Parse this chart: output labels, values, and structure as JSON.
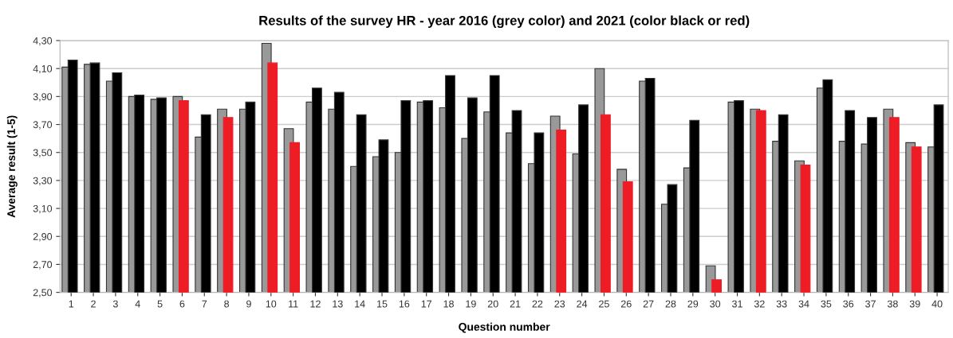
{
  "chart_data": {
    "type": "bar",
    "title": "Results of the survey HR - year 2016 (grey color) and 2021 (color black or red)",
    "xlabel": "Question number",
    "ylabel": "Average result (1-5)",
    "categories": [
      "1",
      "2",
      "3",
      "4",
      "5",
      "6",
      "7",
      "8",
      "9",
      "10",
      "11",
      "12",
      "13",
      "14",
      "15",
      "16",
      "17",
      "18",
      "19",
      "20",
      "21",
      "22",
      "23",
      "24",
      "25",
      "26",
      "27",
      "28",
      "29",
      "30",
      "31",
      "32",
      "33",
      "34",
      "35",
      "36",
      "37",
      "38",
      "39",
      "40"
    ],
    "series": [
      {
        "color": "#999999",
        "values": [
          4.11,
          4.13,
          4.01,
          3.9,
          3.88,
          3.9,
          3.61,
          3.81,
          3.81,
          4.28,
          3.67,
          3.86,
          3.81,
          3.4,
          3.47,
          3.5,
          3.86,
          3.82,
          3.6,
          3.79,
          3.64,
          3.42,
          3.76,
          3.49,
          4.1,
          3.38,
          4.01,
          3.13,
          3.39,
          2.69,
          3.86,
          3.81,
          3.58,
          3.44,
          3.96,
          3.58,
          3.56,
          3.81,
          3.57,
          3.54
        ]
      },
      {
        "colors": [
          "#000000",
          "#000000",
          "#000000",
          "#000000",
          "#000000",
          "#ee1c25",
          "#000000",
          "#ee1c25",
          "#000000",
          "#ee1c25",
          "#ee1c25",
          "#000000",
          "#000000",
          "#000000",
          "#000000",
          "#000000",
          "#000000",
          "#000000",
          "#000000",
          "#000000",
          "#000000",
          "#000000",
          "#ee1c25",
          "#000000",
          "#ee1c25",
          "#ee1c25",
          "#000000",
          "#000000",
          "#000000",
          "#ee1c25",
          "#000000",
          "#ee1c25",
          "#000000",
          "#ee1c25",
          "#000000",
          "#000000",
          "#000000",
          "#ee1c25",
          "#ee1c25",
          "#000000"
        ],
        "values": [
          4.16,
          4.14,
          4.07,
          3.91,
          3.89,
          3.87,
          3.77,
          3.75,
          3.86,
          4.14,
          3.57,
          3.96,
          3.93,
          3.77,
          3.59,
          3.87,
          3.87,
          4.05,
          3.89,
          4.05,
          3.8,
          3.64,
          3.66,
          3.84,
          3.77,
          3.29,
          4.03,
          3.27,
          3.73,
          2.59,
          3.87,
          3.8,
          3.77,
          3.41,
          4.02,
          3.8,
          3.75,
          3.75,
          3.54,
          3.84
        ]
      }
    ],
    "ylim": [
      2.5,
      4.3
    ],
    "yticks": [
      {
        "value": 2.5,
        "label": "2,50"
      },
      {
        "value": 2.7,
        "label": "2,70"
      },
      {
        "value": 2.9,
        "label": "2,90"
      },
      {
        "value": 3.1,
        "label": "3,10"
      },
      {
        "value": 3.3,
        "label": "3,30"
      },
      {
        "value": 3.5,
        "label": "3,50"
      },
      {
        "value": 3.7,
        "label": "3,70"
      },
      {
        "value": 3.9,
        "label": "3,90"
      },
      {
        "value": 4.1,
        "label": "4,10"
      },
      {
        "value": 4.3,
        "label": "4,30"
      }
    ],
    "grid": "y",
    "legend": false
  }
}
